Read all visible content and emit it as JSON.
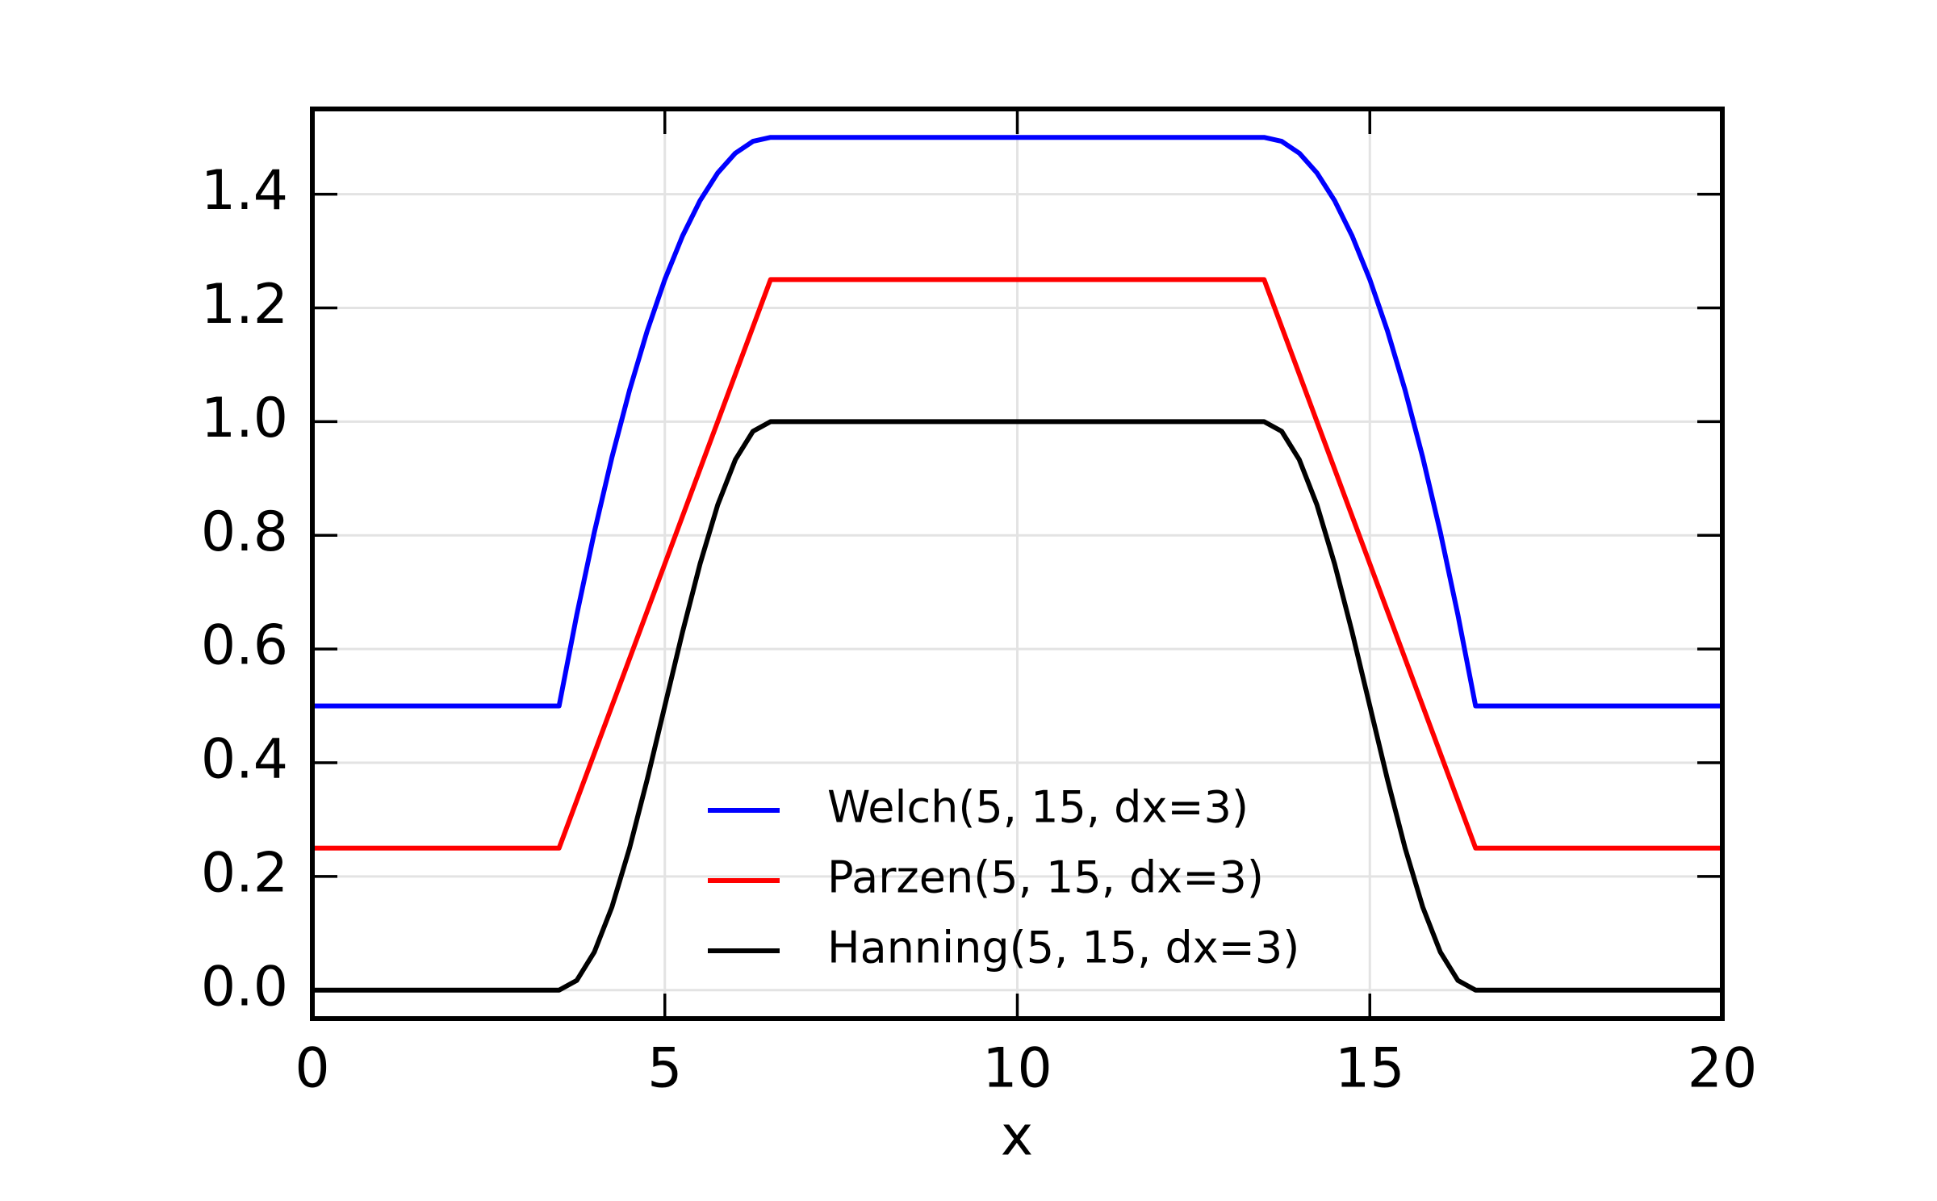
{
  "chart_data": {
    "type": "line",
    "xlabel": "x",
    "x": [
      0,
      3.5,
      3.75,
      4,
      4.25,
      4.5,
      4.75,
      5,
      5.25,
      5.5,
      5.75,
      6,
      6.25,
      6.5,
      13.5,
      13.75,
      14,
      14.25,
      14.5,
      14.75,
      15,
      15.25,
      15.5,
      15.75,
      16,
      16.25,
      16.5,
      20
    ],
    "series": [
      {
        "name": "Welch(5, 15, dx=3)",
        "color": "#0000ff",
        "values": [
          0.5,
          0.5,
          0.6597,
          0.8056,
          0.9375,
          1.0556,
          1.1597,
          1.25,
          1.3264,
          1.3889,
          1.4375,
          1.4722,
          1.4931,
          1.5,
          1.5,
          1.4931,
          1.4722,
          1.4375,
          1.3889,
          1.3264,
          1.25,
          1.1597,
          1.0556,
          0.9375,
          0.8056,
          0.6597,
          0.5,
          0.5
        ]
      },
      {
        "name": "Parzen(5, 15, dx=3)",
        "color": "#ff0000",
        "values": [
          0.25,
          0.25,
          0.3333,
          0.4167,
          0.5,
          0.5833,
          0.6667,
          0.75,
          0.8333,
          0.9167,
          1.0,
          1.0833,
          1.1667,
          1.25,
          1.25,
          1.1667,
          1.0833,
          1.0,
          0.9167,
          0.8333,
          0.75,
          0.6667,
          0.5833,
          0.5,
          0.4167,
          0.3333,
          0.25,
          0.25
        ]
      },
      {
        "name": "Hanning(5, 15, dx=3)",
        "color": "#000000",
        "values": [
          0,
          0,
          0.017,
          0.067,
          0.1464,
          0.25,
          0.3706,
          0.5,
          0.6294,
          0.75,
          0.8536,
          0.933,
          0.983,
          1.0,
          1.0,
          0.983,
          0.933,
          0.8536,
          0.75,
          0.6294,
          0.5,
          0.3706,
          0.25,
          0.1464,
          0.067,
          0.017,
          0,
          0
        ]
      }
    ],
    "xlim": [
      0,
      20
    ],
    "ylim": [
      -0.05,
      1.55
    ],
    "xticks": [
      0,
      5,
      10,
      15,
      20
    ],
    "yticks": [
      {
        "value": 0,
        "label": "0.0"
      },
      {
        "value": 0.2,
        "label": "0.2"
      },
      {
        "value": 0.4,
        "label": "0.4"
      },
      {
        "value": 0.6,
        "label": "0.6"
      },
      {
        "value": 0.8,
        "label": "0.8"
      },
      {
        "value": 1.0,
        "label": "1.0"
      },
      {
        "value": 1.2,
        "label": "1.2"
      },
      {
        "value": 1.4,
        "label": "1.4"
      }
    ],
    "grid": true,
    "legend": "lower center"
  }
}
